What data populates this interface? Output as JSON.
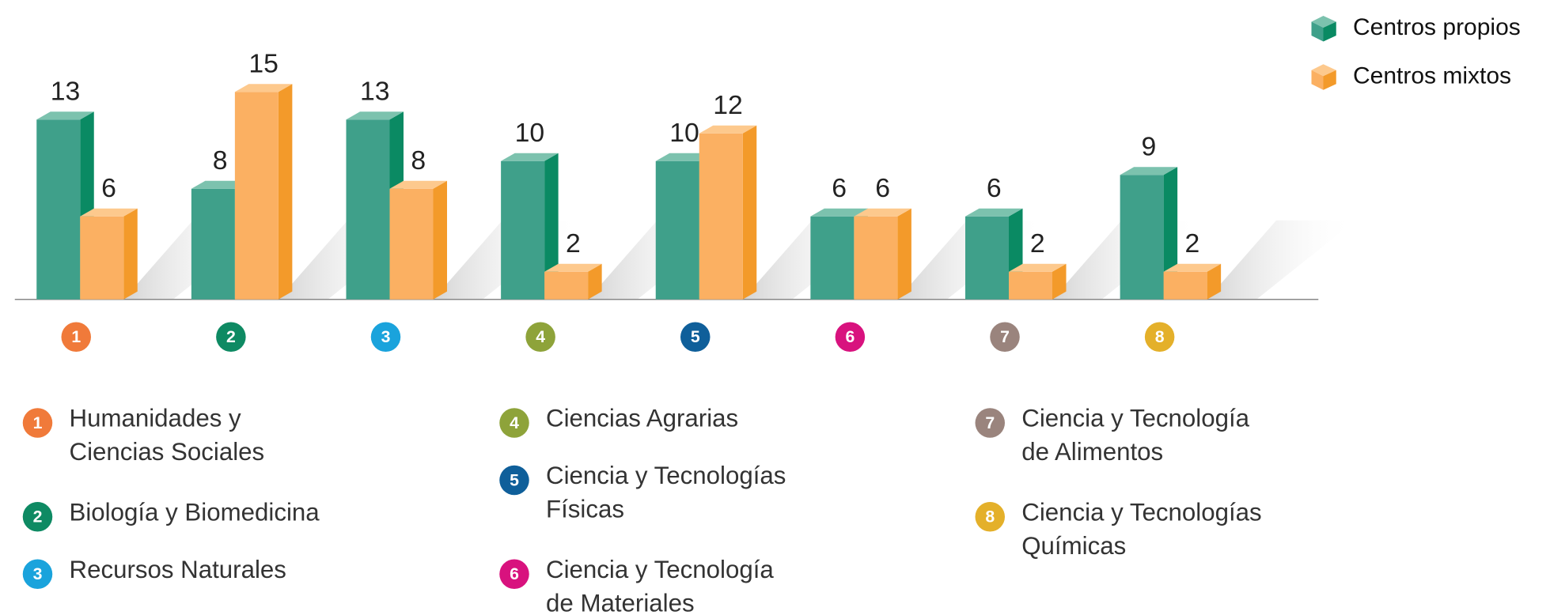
{
  "chart_data": {
    "type": "bar3d",
    "categories": [
      "1",
      "2",
      "3",
      "4",
      "5",
      "6",
      "7",
      "8"
    ],
    "category_colors": [
      "#f07a3a",
      "#0e8a63",
      "#1aa3dc",
      "#8ea33a",
      "#0f5f9a",
      "#d8127e",
      "#9a847d",
      "#e4b02a"
    ],
    "category_names": [
      [
        "Humanidades y",
        "Ciencias Sociales"
      ],
      [
        "Biología y Biomedicina"
      ],
      [
        "Recursos Naturales"
      ],
      [
        "Ciencias Agrarias"
      ],
      [
        "Ciencia y Tecnologías",
        "Físicas"
      ],
      [
        "Ciencia y Tecnología",
        "de Materiales"
      ],
      [
        "Ciencia y Tecnología",
        "de Alimentos"
      ],
      [
        "Ciencia y Tecnologías",
        "Químicas"
      ]
    ],
    "series": [
      {
        "name": "Centros propios",
        "color": "#3fa08a",
        "values": [
          13,
          8,
          13,
          10,
          10,
          6,
          6,
          9
        ]
      },
      {
        "name": "Centros mixtos",
        "color": "#fbb062",
        "values": [
          6,
          15,
          8,
          2,
          12,
          6,
          2,
          2
        ]
      }
    ],
    "legend": "top-right"
  }
}
